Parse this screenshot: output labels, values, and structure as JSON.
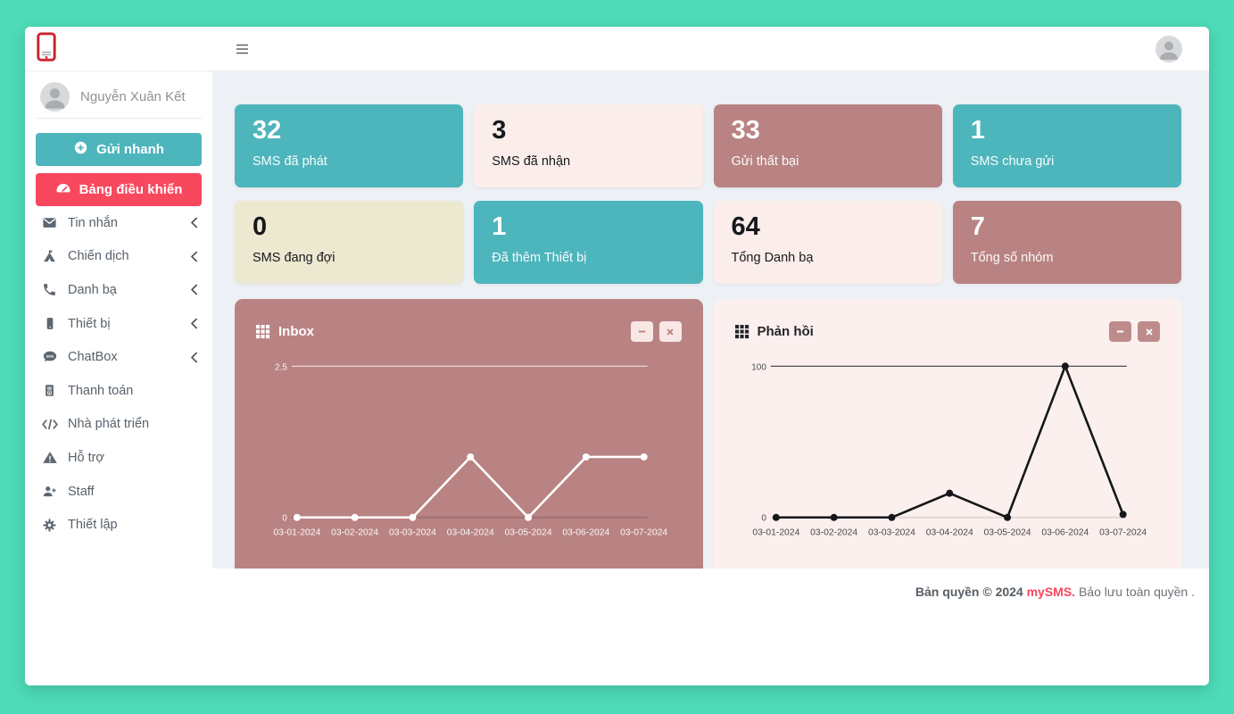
{
  "colors": {
    "frame_mint": "#4EDBB8",
    "content_bg": "#EDF1F6",
    "teal": "#4DB5BC",
    "red_accent": "#F8485E",
    "mauve": "#B98383",
    "pink_light": "#FBEDEA",
    "cream": "#EDE8D0",
    "logo_red": "#C9242F"
  },
  "topbar": {
    "hamburger_icon": "hamburger-icon",
    "avatar_icon": "person-icon"
  },
  "sidebar": {
    "logo_icon": "phone-logo-icon",
    "user_name": "Nguyễn Xuân Kết",
    "quick_send": {
      "label": "Gửi nhanh",
      "icon": "plus-circle-icon",
      "color": "#4DB5BC"
    },
    "dashboard": {
      "label": "Bảng điều khiển",
      "icon": "gauge-icon",
      "color": "#F8485E"
    },
    "items": [
      {
        "label": "Tin nhắn",
        "icon": "envelope-icon",
        "chevron": true
      },
      {
        "label": "Chiến dịch",
        "icon": "campaign-icon",
        "chevron": true
      },
      {
        "label": "Danh bạ",
        "icon": "phone-icon",
        "chevron": true
      },
      {
        "label": "Thiết bị",
        "icon": "device-icon",
        "chevron": true
      },
      {
        "label": "ChatBox",
        "icon": "chat-icon",
        "chevron": true
      },
      {
        "label": "Thanh toán",
        "icon": "invoice-icon",
        "chevron": false
      },
      {
        "label": "Nhà phát triển",
        "icon": "code-icon",
        "chevron": false
      },
      {
        "label": "Hỗ trợ",
        "icon": "support-icon",
        "chevron": false
      },
      {
        "label": "Staff",
        "icon": "staff-icon",
        "chevron": false
      },
      {
        "label": "Thiết lập",
        "icon": "gear-icon",
        "chevron": false
      }
    ]
  },
  "stats": [
    {
      "value": "32",
      "label": "SMS đã phát",
      "variant": "teal"
    },
    {
      "value": "3",
      "label": "SMS đã nhận",
      "variant": "pink"
    },
    {
      "value": "33",
      "label": "Gửi thất bại",
      "variant": "mauve"
    },
    {
      "value": "1",
      "label": "SMS chưa gửi",
      "variant": "teal"
    },
    {
      "value": "0",
      "label": "SMS đang đợi",
      "variant": "cream"
    },
    {
      "value": "1",
      "label": "Đã thêm Thiết bị",
      "variant": "teal"
    },
    {
      "value": "64",
      "label": "Tổng Danh bạ",
      "variant": "pink"
    },
    {
      "value": "7",
      "label": "Tổng số nhóm",
      "variant": "mauve"
    }
  ],
  "chart_data": [
    {
      "type": "line",
      "title": "Inbox",
      "x": [
        "03-01-2024",
        "03-02-2024",
        "03-03-2024",
        "03-04-2024",
        "03-05-2024",
        "03-06-2024",
        "03-07-2024"
      ],
      "series": [
        {
          "name": "Inbox",
          "values": [
            0,
            0,
            0,
            1,
            0,
            1,
            1
          ]
        }
      ],
      "ylim": [
        0,
        2.5
      ],
      "yticks": [
        "2.5",
        "0"
      ],
      "legend": "none",
      "grid": "top-line-and-baseline-only",
      "theme": {
        "card_bg": "#B98383",
        "title_color": "#ffffff",
        "line_color": "#ffffff",
        "point_color": "#ffffff",
        "grid_top_color": "rgba(255,255,255,0.75)",
        "grid_base_color": "rgba(0,0,0,0.14)",
        "tick_color": "rgba(255,255,255,0.92)",
        "xlabel_color": "rgba(255,255,255,0.94)",
        "btn_bg": "#F8E7E5",
        "btn_fg": "#B98383"
      }
    },
    {
      "type": "line",
      "title": "Phản hồi",
      "x": [
        "03-01-2024",
        "03-02-2024",
        "03-03-2024",
        "03-04-2024",
        "03-05-2024",
        "03-06-2024",
        "03-07-2024"
      ],
      "series": [
        {
          "name": "Phản hồi",
          "values": [
            0,
            0,
            0,
            16,
            0,
            100,
            2
          ]
        }
      ],
      "ylim": [
        0,
        100
      ],
      "yticks": [
        "100",
        "0"
      ],
      "legend": "none",
      "grid": "top-line-and-baseline-only",
      "theme": {
        "card_bg": "#FCF0EE",
        "title_color": "#21252b",
        "line_color": "#15171a",
        "point_color": "#15171a",
        "grid_top_color": "#3a3a3a",
        "grid_base_color": "rgba(0,0,0,0.10)",
        "tick_color": "#4a4f55",
        "xlabel_color": "#43484d",
        "btn_bg": "#BE8B8B",
        "btn_fg": "#ffffff"
      }
    }
  ],
  "footer": {
    "copyright": "Bản quyền © 2024",
    "brand": "mySMS.",
    "tail": "Bảo lưu toàn quyền ."
  }
}
